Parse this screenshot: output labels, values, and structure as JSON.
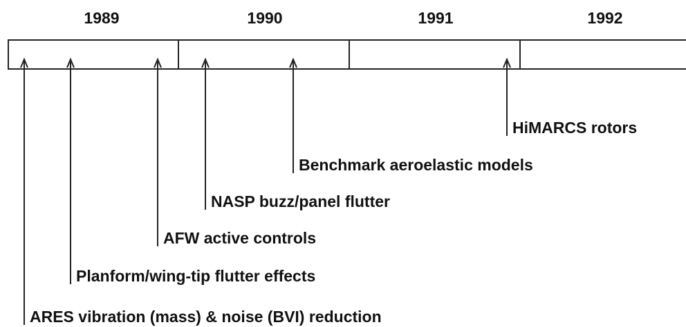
{
  "years": [
    "1989",
    "1990",
    "1991",
    "1992"
  ],
  "events": [
    {
      "label": "ARES vibration (mass) & noise (BVI) reduction"
    },
    {
      "label": "Planform/wing-tip flutter effects"
    },
    {
      "label": "AFW active controls"
    },
    {
      "label": "NASP buzz/panel flutter"
    },
    {
      "label": "Benchmark aeroelastic models"
    },
    {
      "label": "HiMARCS rotors"
    }
  ]
}
